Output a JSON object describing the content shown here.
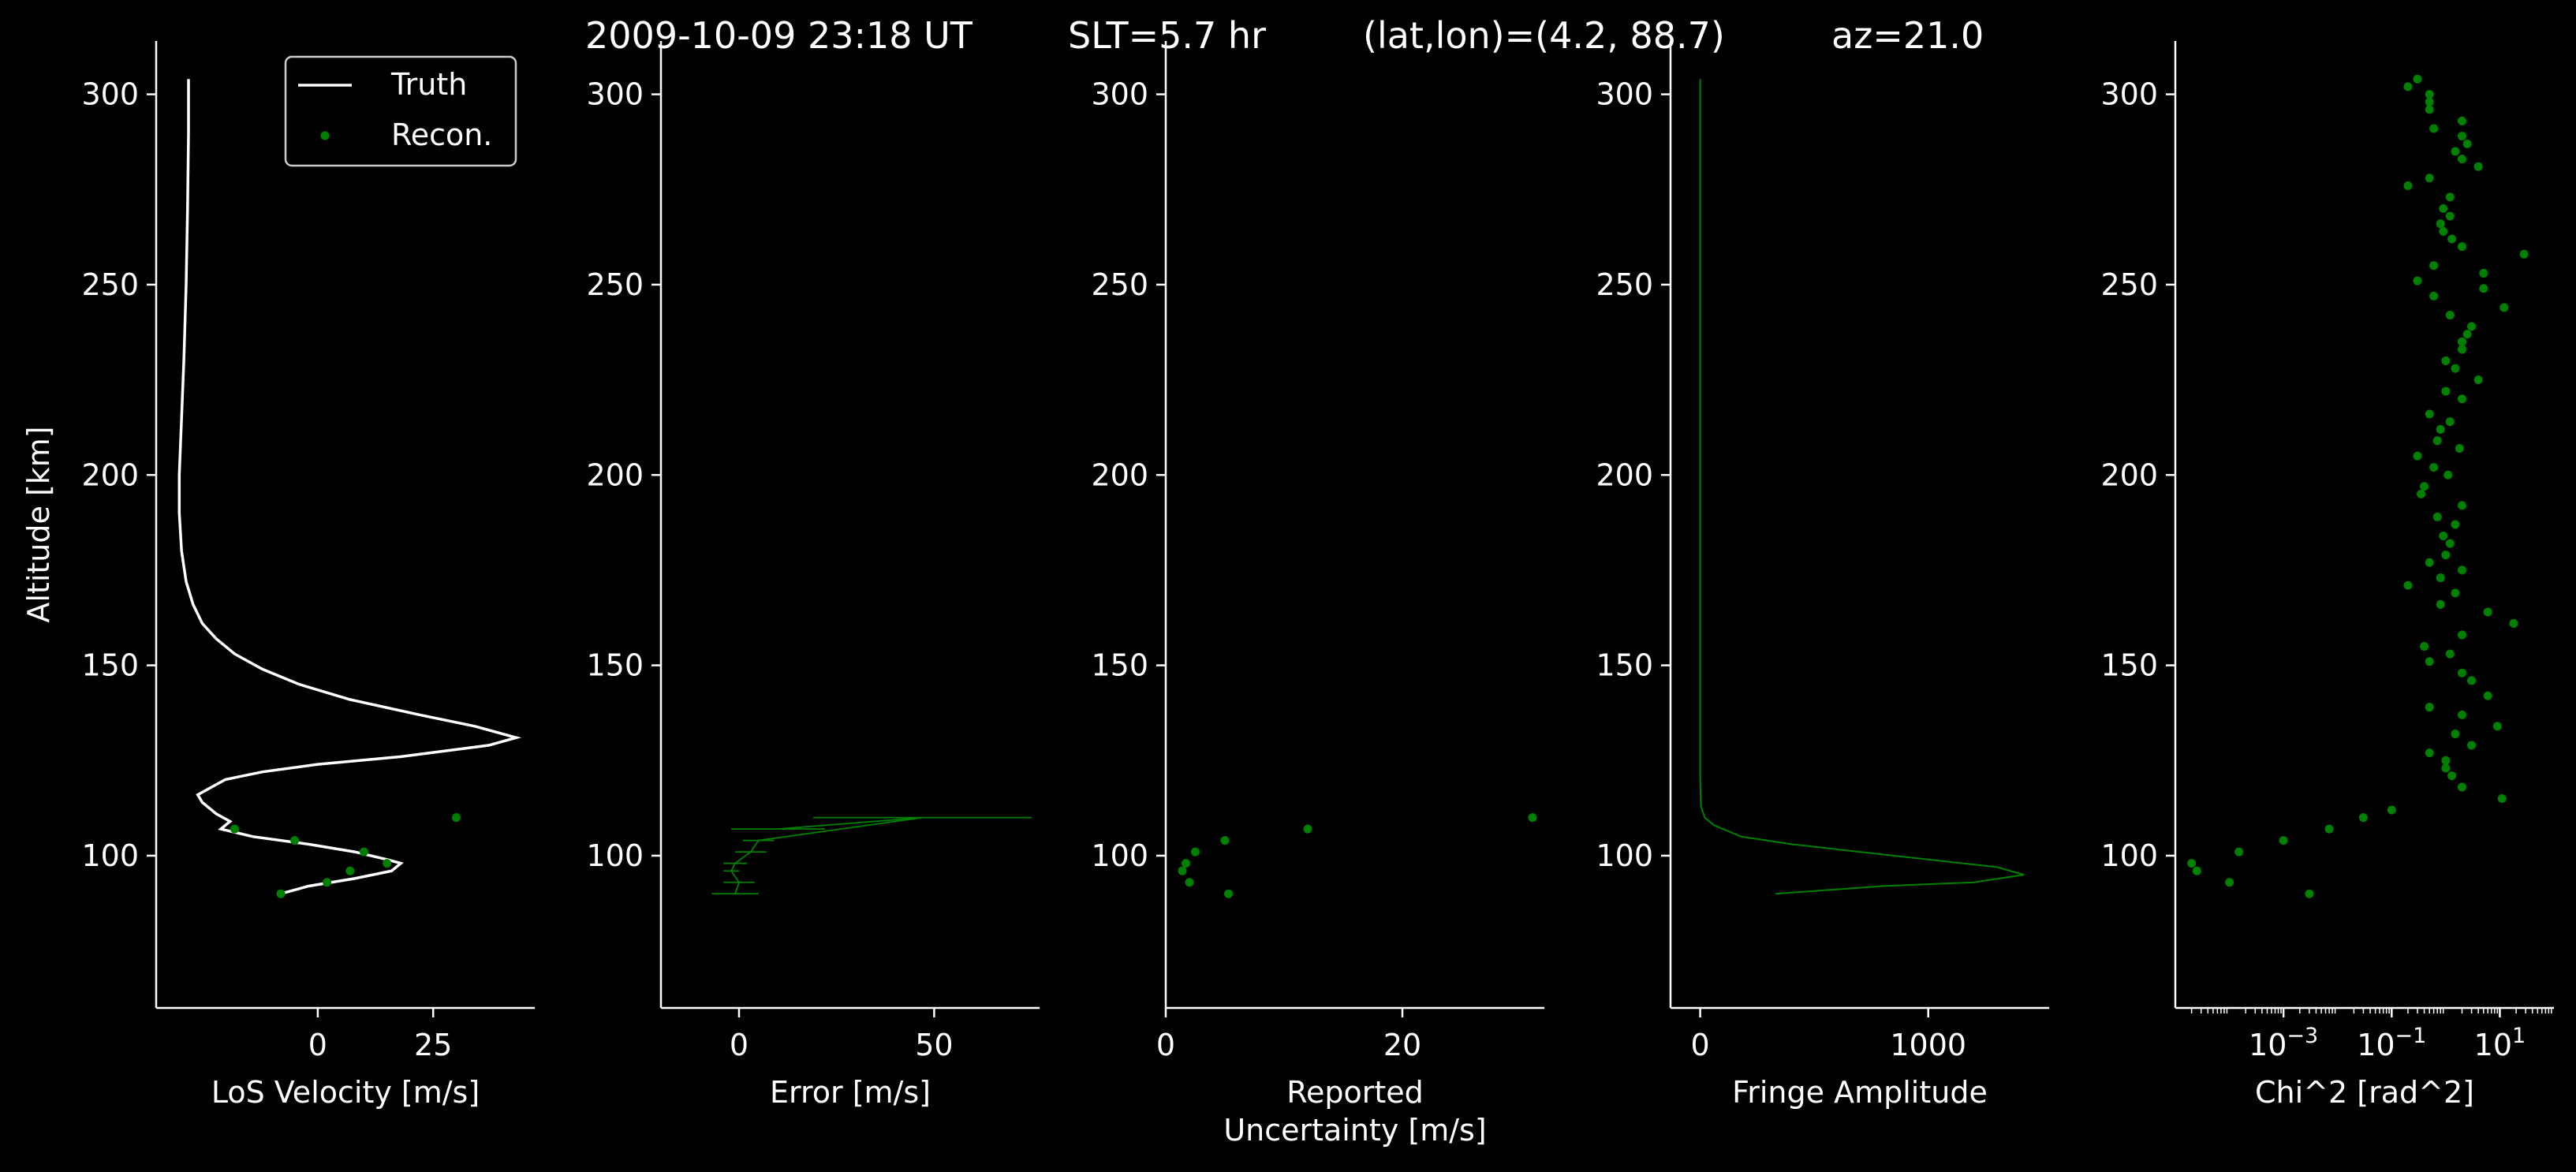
{
  "header": {
    "time": "2009-10-09 23:18 UT",
    "slt": "SLT=5.7 hr",
    "latlon": "(lat,lon)=(4.2, 88.7)",
    "az": "az=21.0"
  },
  "colors": {
    "background": "#000000",
    "axis": "#ffffff",
    "truth": "#ffffff",
    "recon": "#008000"
  },
  "chart_data": [
    {
      "type": "line",
      "xlabel": "LoS Velocity [m/s]",
      "ylabel": "Altitude [km]",
      "ylim": [
        60,
        314
      ],
      "xlim": [
        -35,
        47
      ],
      "xticks": [
        0,
        25
      ],
      "yticks": [
        100,
        150,
        200,
        250,
        300
      ],
      "legend": {
        "placement": "top-right",
        "entries": [
          "Truth",
          "Recon."
        ]
      },
      "series": [
        {
          "name": "Truth",
          "style": "line",
          "points": [
            [
              -28,
              304
            ],
            [
              -28,
              290
            ],
            [
              -28.2,
              270
            ],
            [
              -28.5,
              250
            ],
            [
              -29,
              230
            ],
            [
              -29.5,
              215
            ],
            [
              -30,
              200
            ],
            [
              -30,
              190
            ],
            [
              -29.5,
              180
            ],
            [
              -28.5,
              172
            ],
            [
              -27,
              166
            ],
            [
              -25,
              161
            ],
            [
              -22,
              157
            ],
            [
              -18,
              153
            ],
            [
              -12,
              149
            ],
            [
              -4,
              145
            ],
            [
              7,
              141
            ],
            [
              22,
              137
            ],
            [
              34,
              134
            ],
            [
              43,
              131
            ],
            [
              37,
              129
            ],
            [
              18,
              126
            ],
            [
              0,
              124
            ],
            [
              -12,
              122
            ],
            [
              -20,
              120
            ],
            [
              -23,
              118
            ],
            [
              -26,
              116
            ],
            [
              -25,
              114
            ],
            [
              -22,
              111
            ],
            [
              -19,
              109
            ],
            [
              -21,
              107
            ],
            [
              -14,
              105
            ],
            [
              -2,
              103
            ],
            [
              8,
              101
            ],
            [
              15,
              99
            ],
            [
              18,
              98
            ],
            [
              16,
              96
            ],
            [
              8,
              94
            ],
            [
              -2,
              92
            ],
            [
              -8,
              90
            ]
          ]
        },
        {
          "name": "Recon.",
          "style": "points",
          "points": [
            [
              -18,
              107
            ],
            [
              30,
              110
            ],
            [
              -5,
              104
            ],
            [
              10,
              101
            ],
            [
              15,
              98
            ],
            [
              7,
              96
            ],
            [
              2,
              93
            ],
            [
              -8,
              90
            ]
          ]
        }
      ]
    },
    {
      "type": "line",
      "xlabel": "Error [m/s]",
      "ylim": [
        60,
        314
      ],
      "xlim": [
        -20,
        77
      ],
      "xticks": [
        0,
        50
      ],
      "yticks": [
        100,
        150,
        200,
        250,
        300
      ],
      "series": [
        {
          "style": "errorbar",
          "points": [
            [
              10,
              107
            ],
            [
              47,
              110
            ],
            [
              5,
              104
            ],
            [
              3,
              101
            ],
            [
              -1,
              98
            ],
            [
              -2,
              96
            ],
            [
              0,
              93
            ],
            [
              -1,
              90
            ]
          ],
          "xerr": [
            12,
            28,
            4,
            4,
            3,
            2,
            4,
            6
          ]
        }
      ]
    },
    {
      "type": "scatter",
      "xlabel": "Reported\nUncertainty [m/s]",
      "ylim": [
        60,
        314
      ],
      "xlim": [
        0,
        32
      ],
      "xticks": [
        0,
        20
      ],
      "yticks": [
        100,
        150,
        200,
        250,
        300
      ],
      "series": [
        {
          "style": "points",
          "points": [
            [
              12,
              107
            ],
            [
              31,
              110
            ],
            [
              5,
              104
            ],
            [
              2.5,
              101
            ],
            [
              1.7,
              98
            ],
            [
              1.4,
              96
            ],
            [
              2,
              93
            ],
            [
              5.3,
              90
            ]
          ]
        }
      ]
    },
    {
      "type": "line",
      "xlabel": "Fringe Amplitude",
      "ylim": [
        60,
        314
      ],
      "xlim": [
        -130,
        1530
      ],
      "xticks": [
        0,
        1000
      ],
      "yticks": [
        100,
        150,
        200,
        250,
        300
      ],
      "series": [
        {
          "style": "line",
          "points": [
            [
              0,
              304
            ],
            [
              0,
              250
            ],
            [
              0,
              200
            ],
            [
              0,
              150
            ],
            [
              0,
              120
            ],
            [
              3,
              113
            ],
            [
              20,
              110
            ],
            [
              60,
              108
            ],
            [
              180,
              105
            ],
            [
              400,
              103
            ],
            [
              700,
              101
            ],
            [
              1000,
              99
            ],
            [
              1300,
              97
            ],
            [
              1420,
              95
            ],
            [
              1200,
              93
            ],
            [
              800,
              92
            ],
            [
              330,
              90
            ]
          ]
        }
      ]
    },
    {
      "type": "scatter",
      "xlabel": "Chi^2 [rad^2]",
      "xscale": "log",
      "ylim": [
        60,
        314
      ],
      "xlim": [
        1e-05,
        100
      ],
      "xticks": [
        0.001,
        0.1,
        10
      ],
      "xticklabels": [
        "10",
        "10",
        "10"
      ],
      "xtickexp": [
        "−3",
        "−1",
        "1"
      ],
      "yticks": [
        100,
        150,
        200,
        250,
        300
      ],
      "series": [
        {
          "style": "points",
          "points": [
            [
              0.3,
              304
            ],
            [
              0.2,
              302
            ],
            [
              0.5,
              300
            ],
            [
              0.5,
              298
            ],
            [
              0.5,
              296
            ],
            [
              2,
              293
            ],
            [
              0.6,
              291
            ],
            [
              2,
              289
            ],
            [
              2.5,
              287
            ],
            [
              1.5,
              285
            ],
            [
              2,
              283
            ],
            [
              4,
              281
            ],
            [
              0.5,
              278
            ],
            [
              0.2,
              276
            ],
            [
              1.2,
              273
            ],
            [
              0.9,
              270
            ],
            [
              1.2,
              268
            ],
            [
              0.8,
              266
            ],
            [
              0.9,
              264
            ],
            [
              1.3,
              262
            ],
            [
              2,
              260
            ],
            [
              28,
              258
            ],
            [
              0.6,
              255
            ],
            [
              5,
              253
            ],
            [
              0.3,
              251
            ],
            [
              5,
              249
            ],
            [
              0.6,
              247
            ],
            [
              12,
              244
            ],
            [
              1.2,
              242
            ],
            [
              3,
              239
            ],
            [
              2.5,
              237
            ],
            [
              2,
              235
            ],
            [
              2,
              233
            ],
            [
              1,
              230
            ],
            [
              1.5,
              228
            ],
            [
              4,
              225
            ],
            [
              1,
              222
            ],
            [
              2,
              220
            ],
            [
              0.5,
              216
            ],
            [
              1.2,
              214
            ],
            [
              0.8,
              212
            ],
            [
              0.7,
              209
            ],
            [
              1.8,
              207
            ],
            [
              0.3,
              205
            ],
            [
              0.6,
              202
            ],
            [
              1.1,
              200
            ],
            [
              0.4,
              197
            ],
            [
              0.35,
              195
            ],
            [
              2,
              192
            ],
            [
              0.7,
              189
            ],
            [
              1.5,
              187
            ],
            [
              0.9,
              184
            ],
            [
              1.2,
              182
            ],
            [
              1,
              179
            ],
            [
              0.5,
              177
            ],
            [
              2,
              175
            ],
            [
              0.8,
              173
            ],
            [
              0.2,
              171
            ],
            [
              1.5,
              169
            ],
            [
              0.8,
              166
            ],
            [
              6,
              164
            ],
            [
              18,
              161
            ],
            [
              2,
              158
            ],
            [
              0.4,
              155
            ],
            [
              1.2,
              153
            ],
            [
              0.5,
              151
            ],
            [
              2,
              148
            ],
            [
              3,
              146
            ],
            [
              6,
              142
            ],
            [
              0.5,
              139
            ],
            [
              2,
              137
            ],
            [
              9,
              134
            ],
            [
              1.5,
              132
            ],
            [
              3,
              129
            ],
            [
              0.5,
              127
            ],
            [
              1,
              125
            ],
            [
              1,
              123
            ],
            [
              1.3,
              121
            ],
            [
              2,
              118
            ],
            [
              11,
              115
            ],
            [
              0.1,
              112
            ],
            [
              0.03,
              110
            ],
            [
              0.007,
              107
            ],
            [
              0.001,
              104
            ],
            [
              0.00015,
              101
            ],
            [
              2e-05,
              98
            ],
            [
              2.5e-05,
              96
            ],
            [
              0.0001,
              93
            ],
            [
              0.003,
              90
            ]
          ]
        }
      ]
    }
  ]
}
